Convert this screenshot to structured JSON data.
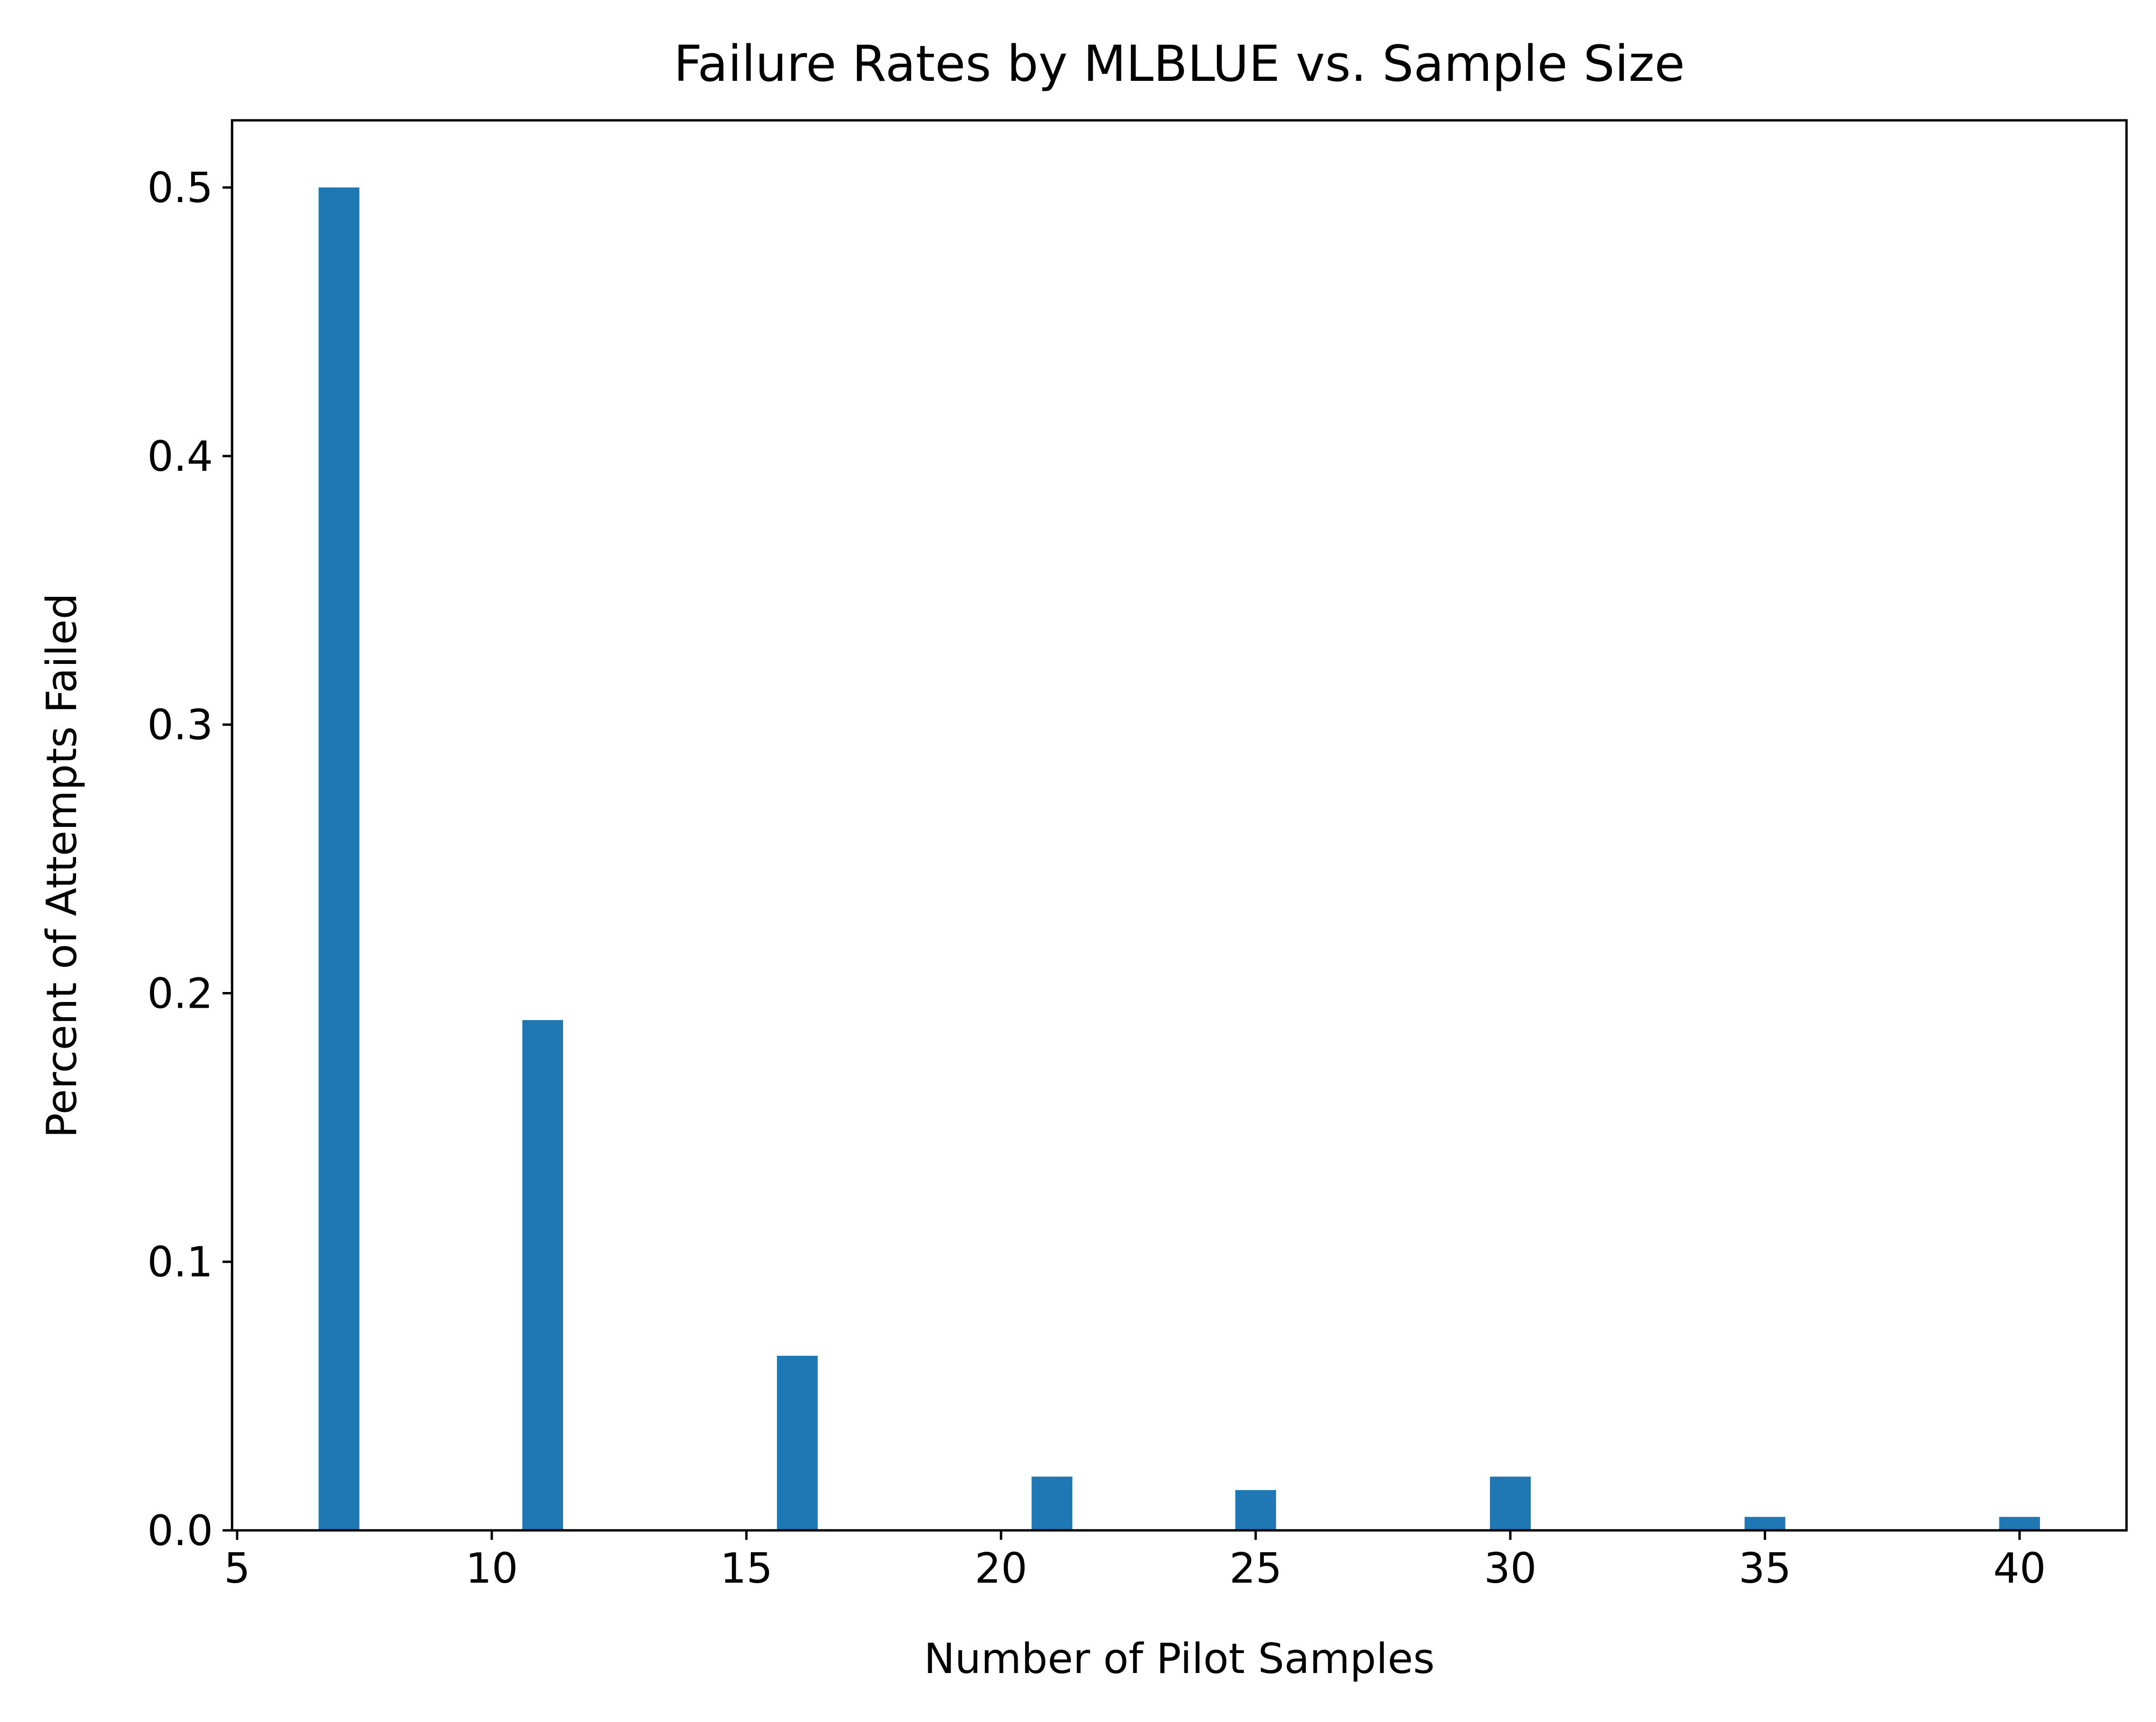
{
  "chart_data": {
    "type": "bar",
    "title": "Failure Rates by MLBLUE vs. Sample Size",
    "xlabel": "Number of Pilot Samples",
    "ylabel": "Percent of Attempts Failed",
    "x": [
      7,
      11,
      16,
      21,
      25,
      30,
      35,
      40
    ],
    "values": [
      0.5,
      0.19,
      0.065,
      0.02,
      0.015,
      0.02,
      0.005,
      0.005
    ],
    "bar_width": 0.8,
    "xlim": [
      4.9,
      42.1
    ],
    "ylim": [
      0,
      0.525
    ],
    "xticks": [
      5,
      10,
      15,
      20,
      25,
      30,
      35,
      40
    ],
    "xtick_labels": [
      "5",
      "10",
      "15",
      "20",
      "25",
      "30",
      "35",
      "40"
    ],
    "yticks": [
      0,
      0.1,
      0.2,
      0.3,
      0.4,
      0.5
    ],
    "ytick_labels": [
      "0.0",
      "0.1",
      "0.2",
      "0.3",
      "0.4",
      "0.5"
    ],
    "bar_color": "#1f77b4",
    "grid": false,
    "legend": "none"
  }
}
